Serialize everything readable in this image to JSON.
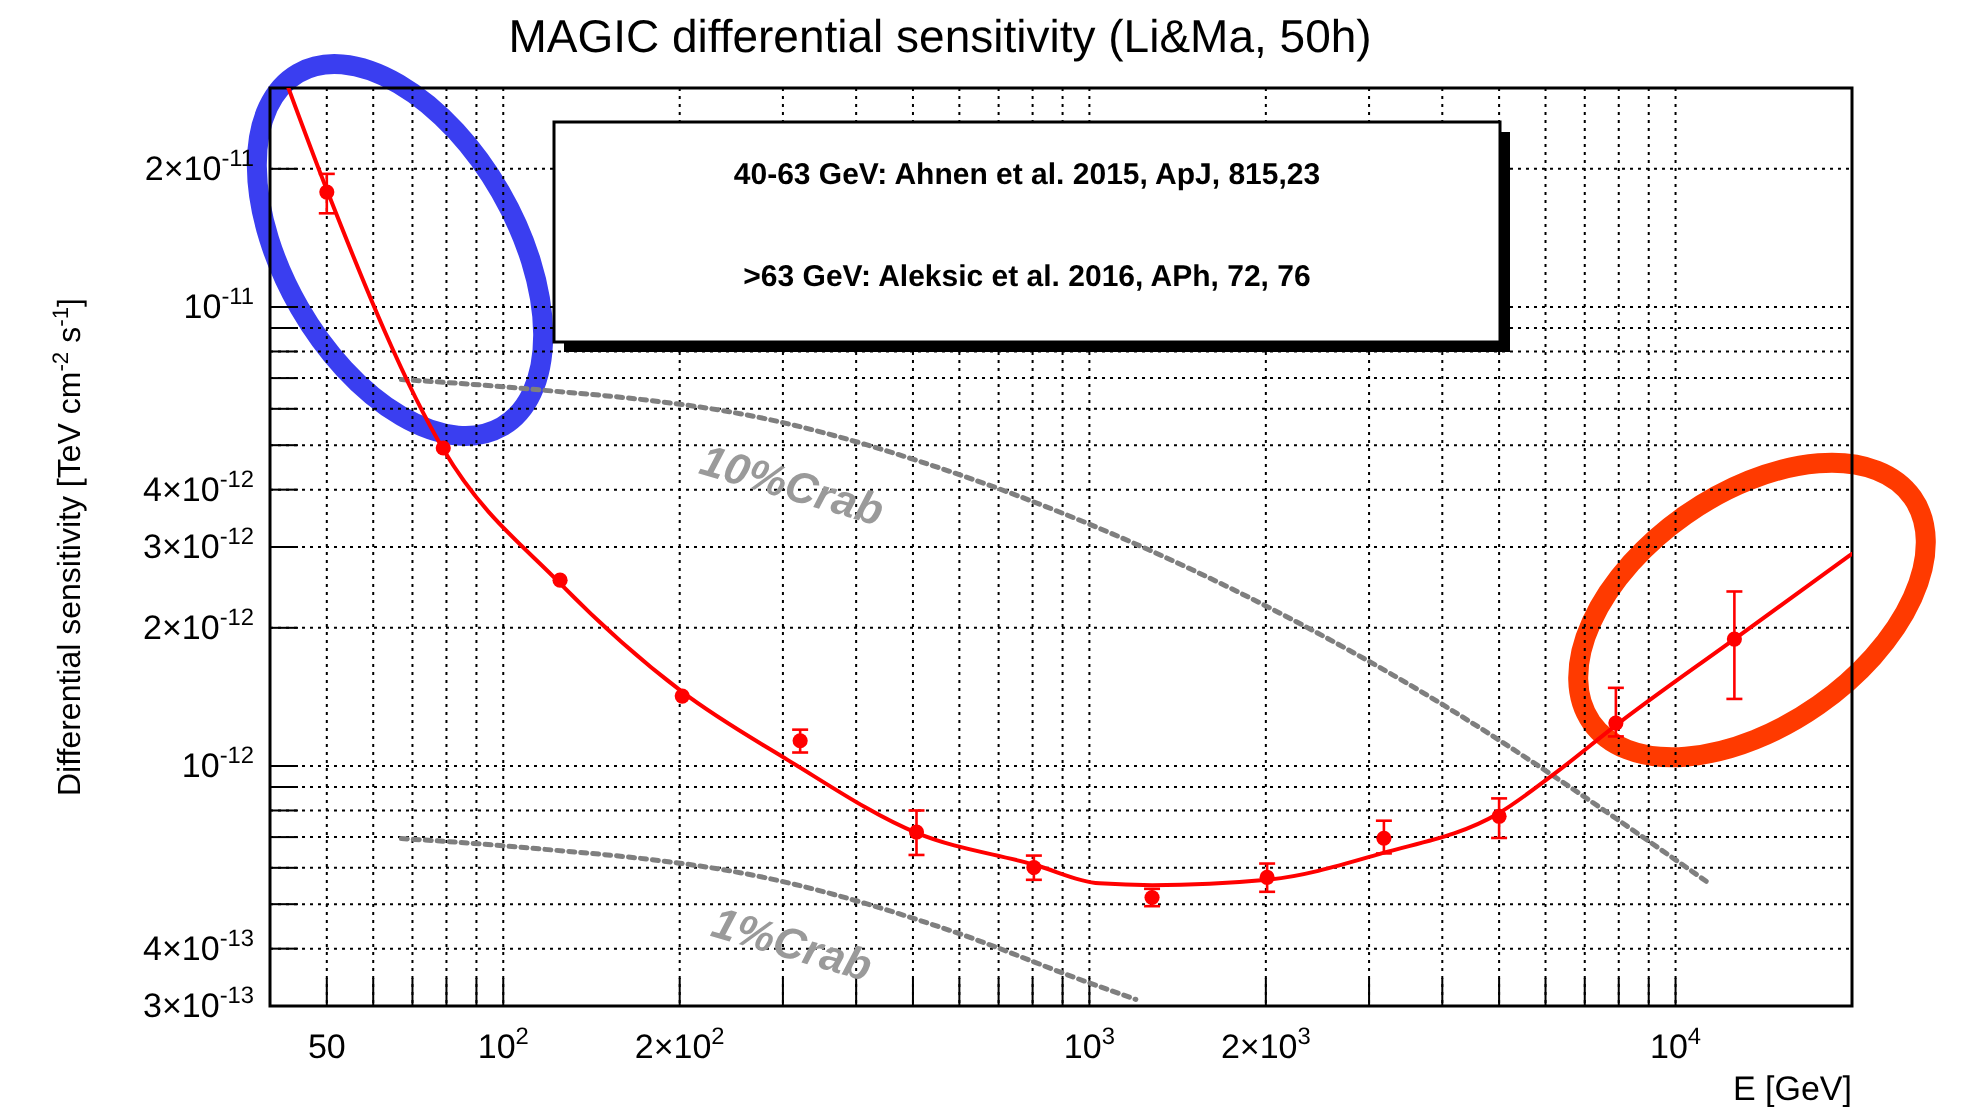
{
  "chart_data": {
    "type": "scatter",
    "title": "MAGIC differential sensitivity (Li&Ma, 50h)",
    "xlabel": "E [GeV]",
    "ylabel": "Differential sensitivity [TeV cm$^{-2}$ s$^{-1}$]",
    "log": "xy",
    "grid": true,
    "legend": false,
    "xlim": [
      40,
      20000
    ],
    "xticks": [
      50,
      {
        "value": 60,
        "label": null
      },
      {
        "value": 70,
        "label": null
      },
      {
        "value": 80,
        "label": null
      },
      {
        "value": 90,
        "label": null
      },
      {
        "value": 100,
        "label": "10$^{2}$"
      },
      {
        "value": 200,
        "label": "2×10$^{2}$"
      },
      {
        "value": 300,
        "label": null
      },
      {
        "value": 400,
        "label": null
      },
      {
        "value": 500,
        "label": null
      },
      {
        "value": 600,
        "label": null
      },
      {
        "value": 700,
        "label": null
      },
      {
        "value": 800,
        "label": null
      },
      {
        "value": 900,
        "label": null
      },
      {
        "value": 1000,
        "label": "10$^{3}$"
      },
      {
        "value": 2000,
        "label": "2×10$^{3}$"
      },
      {
        "value": 3000,
        "label": null
      },
      {
        "value": 4000,
        "label": null
      },
      {
        "value": 5000,
        "label": null
      },
      {
        "value": 6000,
        "label": null
      },
      {
        "value": 7000,
        "label": null
      },
      {
        "value": 8000,
        "label": null
      },
      {
        "value": 9000,
        "label": null
      },
      {
        "value": 10000,
        "label": "10$^{4}$"
      }
    ],
    "ylim": [
      3e-13,
      3e-11
    ],
    "yticks": [
      {
        "value": 3e-13,
        "label": "3×10$^{-13}$"
      },
      {
        "value": 4e-13,
        "label": "4×10$^{-13}$"
      },
      {
        "value": 5e-13,
        "label": null
      },
      {
        "value": 6e-13,
        "label": null
      },
      {
        "value": 7e-13,
        "label": null
      },
      {
        "value": 8e-13,
        "label": null
      },
      {
        "value": 9e-13,
        "label": null
      },
      {
        "value": 1e-12,
        "label": "10$^{-12}$"
      },
      {
        "value": 2e-12,
        "label": "2×10$^{-12}$"
      },
      {
        "value": 3e-12,
        "label": "3×10$^{-12}$"
      },
      {
        "value": 4e-12,
        "label": "4×10$^{-12}$"
      },
      {
        "value": 5e-12,
        "label": null
      },
      {
        "value": 6e-12,
        "label": null
      },
      {
        "value": 7e-12,
        "label": null
      },
      {
        "value": 8e-12,
        "label": null
      },
      {
        "value": 9e-12,
        "label": null
      },
      {
        "value": 1e-11,
        "label": "10$^{-11}$"
      },
      {
        "value": 2e-11,
        "label": "2×10$^{-11}$"
      }
    ],
    "annotations": [
      "40-63 GeV: Ahnen et al. 2015, ApJ, 815,23",
      ">63 GeV: Aleksic et al. 2016, APh, 72, 76"
    ],
    "series": [
      {
        "name": "10%Crab",
        "type": "line",
        "color": "#7f7f7f",
        "line_style": "dotted",
        "marker": "none",
        "x": [
          67,
          100,
          300,
          585,
          980,
          3290,
          11300
        ],
        "values": [
          6.95e-12,
          6.7e-12,
          5.6e-12,
          4.36e-12,
          3.4e-12,
          1.58e-12,
          5.6e-13
        ]
      },
      {
        "name": "1%Crab",
        "type": "line",
        "color": "#7f7f7f",
        "line_style": "dotted",
        "marker": "none",
        "x": [
          67,
          100,
          300,
          585,
          980,
          1200
        ],
        "values": [
          6.95e-13,
          6.7e-13,
          5.6e-13,
          4.36e-13,
          3.4e-13,
          3.1e-13
        ]
      },
      {
        "type": "line",
        "color": "#ff0000",
        "line_style": "solid",
        "marker": "none",
        "x": [
          43,
          50,
          79,
          125,
          202,
          306,
          507,
          804,
          1040,
          1280,
          2010,
          3150,
          5000,
          6200,
          8000,
          12600,
          20000
        ],
        "values": [
          3e-11,
          1.8e-11,
          4.9e-12,
          2.5e-12,
          1.45e-12,
          1.03e-12,
          7.15e-13,
          6.1e-13,
          5.55e-13,
          5.5e-13,
          5.65e-13,
          6.45e-13,
          7.9e-13,
          9.6e-13,
          1.24e-12,
          1.89e-12,
          2.9e-12
        ]
      },
      {
        "color": "#ff0000",
        "marker": "circle",
        "x": [
          50,
          79,
          125,
          202,
          321,
          507,
          804,
          1279,
          2010,
          3180,
          5000,
          7910,
          12600
        ],
        "values": [
          1.78e-11,
          4.93e-12,
          2.54e-12,
          1.42e-12,
          1.135e-12,
          7.18e-13,
          6.01e-13,
          5.17e-13,
          5.72e-13,
          6.96e-13,
          7.77e-13,
          1.24e-12,
          1.89e-12
        ],
        "errors": [
          [
            1.6e-11,
            1.95e-11
          ],
          null,
          null,
          null,
          [
            1.07e-12,
            1.2e-12
          ],
          [
            6.4e-13,
            8e-13
          ],
          [
            5.65e-13,
            6.38e-13
          ],
          [
            4.95e-13,
            5.4e-13
          ],
          [
            5.32e-13,
            6.13e-13
          ],
          [
            6.45e-13,
            7.6e-13
          ],
          [
            6.97e-13,
            8.5e-13
          ],
          [
            1.16e-12,
            1.48e-12
          ],
          [
            1.4e-12,
            2.4e-12
          ]
        ]
      }
    ]
  }
}
